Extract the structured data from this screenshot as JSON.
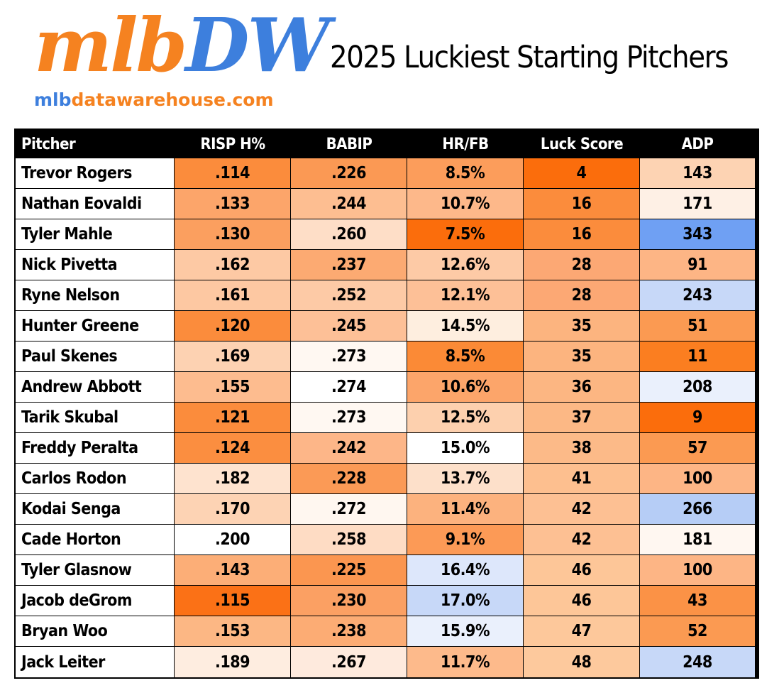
{
  "logo": {
    "main_a": "mlb",
    "main_b": "DW",
    "url_a": "mlb",
    "url_b": "datawarehouse.com"
  },
  "title": "2025 Luckiest Starting Pitchers",
  "chart_data": {
    "type": "table",
    "title": "2025 Luckiest Starting Pitchers",
    "columns": [
      "Pitcher",
      "RISP H%",
      "BABIP",
      "HR/FB",
      "Luck Score",
      "ADP"
    ],
    "rows": [
      {
        "cells": [
          "Trevor Rogers",
          ".114",
          ".226",
          "8.5%",
          "4",
          "143"
        ],
        "colors": [
          "#ffffff",
          "#fb8c3c",
          "#fb9954",
          "#fc9d5b",
          "#fb6d0c",
          "#fdd3b3"
        ]
      },
      {
        "cells": [
          "Nathan Eovaldi",
          ".133",
          ".244",
          "10.7%",
          "16",
          "171"
        ],
        "colors": [
          "#ffffff",
          "#fca56a",
          "#fdbe91",
          "#fdb88a",
          "#fb8c3c",
          "#fef0e5"
        ]
      },
      {
        "cells": [
          "Tyler Mahle",
          ".130",
          ".260",
          "7.5%",
          "16",
          "343"
        ],
        "colors": [
          "#ffffff",
          "#fb9f5f",
          "#fedec7",
          "#fb6d0c",
          "#fb8c3c",
          "#6fa0f3"
        ]
      },
      {
        "cells": [
          "Nick Pivetta",
          ".162",
          ".237",
          "12.6%",
          "28",
          "91"
        ],
        "colors": [
          "#ffffff",
          "#fdc9a4",
          "#fcaa72",
          "#fdcaa6",
          "#fca874",
          "#fdb585"
        ]
      },
      {
        "cells": [
          "Ryne Nelson",
          ".161",
          ".252",
          "12.1%",
          "28",
          "243"
        ],
        "colors": [
          "#ffffff",
          "#fdc8a2",
          "#fdcaa6",
          "#fdc097",
          "#fca874",
          "#c7d8f8"
        ]
      },
      {
        "cells": [
          "Hunter Greene",
          ".120",
          ".245",
          "14.5%",
          "35",
          "51"
        ],
        "colors": [
          "#ffffff",
          "#fb8c3c",
          "#fdc097",
          "#feeedf",
          "#fcb47f",
          "#fb9a52"
        ]
      },
      {
        "cells": [
          "Paul Skenes",
          ".169",
          ".273",
          "8.5%",
          "35",
          "11"
        ],
        "colors": [
          "#ffffff",
          "#fdd2b2",
          "#fff8f2",
          "#fb8a36",
          "#fcb47f",
          "#fb7e20"
        ]
      },
      {
        "cells": [
          "Andrew Abbott",
          ".155",
          ".274",
          "10.6%",
          "36",
          "208"
        ],
        "colors": [
          "#ffffff",
          "#fdbc8f",
          "#ffffff",
          "#fca56a",
          "#fcb682",
          "#eaf0fc"
        ]
      },
      {
        "cells": [
          "Tarik Skubal",
          ".121",
          ".273",
          "12.5%",
          "37",
          "9"
        ],
        "colors": [
          "#ffffff",
          "#fb8c3c",
          "#fff8f2",
          "#fdd0ae",
          "#fcb885",
          "#fb6d0c"
        ]
      },
      {
        "cells": [
          "Freddy Peralta",
          ".124",
          ".242",
          "15.0%",
          "38",
          "57"
        ],
        "colors": [
          "#ffffff",
          "#fb8e40",
          "#fdb688",
          "#ffffff",
          "#fcba88",
          "#fb9a52"
        ]
      },
      {
        "cells": [
          "Carlos Rodon",
          ".182",
          ".228",
          "13.7%",
          "41",
          "100"
        ],
        "colors": [
          "#ffffff",
          "#fee3cf",
          "#fb9a56",
          "#fde0ca",
          "#fdbf8f",
          "#fdb585"
        ]
      },
      {
        "cells": [
          "Kodai Senga",
          ".170",
          ".272",
          "11.4%",
          "42",
          "266"
        ],
        "colors": [
          "#ffffff",
          "#fdd3b4",
          "#fff7f0",
          "#fcb27e",
          "#fdc093",
          "#b6cdf6"
        ]
      },
      {
        "cells": [
          "Cade Horton",
          ".200",
          ".258",
          "9.1%",
          "42",
          "181"
        ],
        "colors": [
          "#ffffff",
          "#ffffff",
          "#fedcc4",
          "#fc9a56",
          "#fdc093",
          "#fff7f1"
        ]
      },
      {
        "cells": [
          "Tyler Glasnow",
          ".143",
          ".225",
          "16.4%",
          "46",
          "100"
        ],
        "colors": [
          "#ffffff",
          "#fcae77",
          "#fb9650",
          "#dde7fb",
          "#fdc698",
          "#fdb585"
        ]
      },
      {
        "cells": [
          "Jacob deGrom",
          ".115",
          ".230",
          "17.0%",
          "46",
          "43"
        ],
        "colors": [
          "#ffffff",
          "#fb7116",
          "#fba063",
          "#c7d8f8",
          "#fdc698",
          "#fb9246"
        ]
      },
      {
        "cells": [
          "Bryan Woo",
          ".153",
          ".238",
          "15.9%",
          "47",
          "52"
        ],
        "colors": [
          "#ffffff",
          "#fcb784",
          "#fcac74",
          "#eaf0fc",
          "#fdc89b",
          "#fb9a52"
        ]
      },
      {
        "cells": [
          "Jack Leiter",
          ".189",
          ".267",
          "11.7%",
          "48",
          "248"
        ],
        "colors": [
          "#ffffff",
          "#feede0",
          "#feeadd",
          "#fdba8b",
          "#fdc99d",
          "#c7d8f8"
        ]
      }
    ]
  }
}
